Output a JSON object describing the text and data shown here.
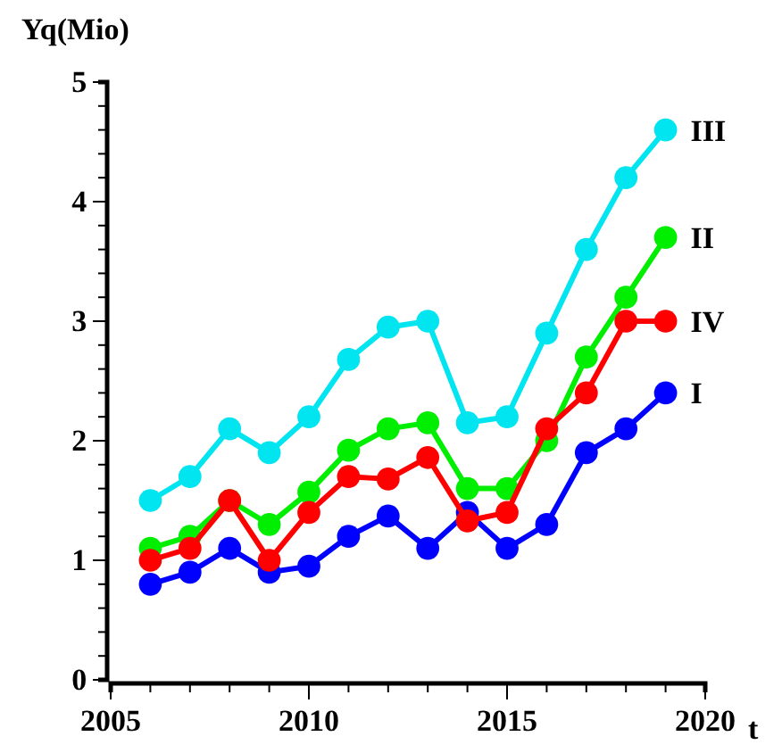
{
  "chart_data": {
    "type": "line",
    "xlabel": "t",
    "ylabel": "Yq(Mio)",
    "x": [
      2006,
      2007,
      2008,
      2009,
      2010,
      2011,
      2012,
      2013,
      2014,
      2015,
      2016,
      2017,
      2018,
      2019
    ],
    "xlim": [
      2005,
      2020
    ],
    "xticks": [
      2005,
      {
        "value": 2006,
        "label": null
      },
      {
        "value": 2007,
        "label": null
      },
      {
        "value": 2008,
        "label": null
      },
      {
        "value": 2009,
        "label": null
      },
      2010,
      {
        "value": 2011,
        "label": null
      },
      {
        "value": 2012,
        "label": null
      },
      {
        "value": 2013,
        "label": null
      },
      {
        "value": 2014,
        "label": null
      },
      2015,
      {
        "value": 2016,
        "label": null
      },
      {
        "value": 2017,
        "label": null
      },
      {
        "value": 2018,
        "label": null
      },
      {
        "value": 2019,
        "label": null
      },
      2020
    ],
    "ylim": [
      0,
      5
    ],
    "yticks": [
      0,
      {
        "value": 0.2,
        "label": null
      },
      {
        "value": 0.4,
        "label": null
      },
      {
        "value": 0.6,
        "label": null
      },
      {
        "value": 0.8,
        "label": null
      },
      1,
      {
        "value": 1.2,
        "label": null
      },
      {
        "value": 1.4,
        "label": null
      },
      {
        "value": 1.6,
        "label": null
      },
      {
        "value": 1.8,
        "label": null
      },
      2,
      {
        "value": 2.2,
        "label": null
      },
      {
        "value": 2.4,
        "label": null
      },
      {
        "value": 2.6,
        "label": null
      },
      {
        "value": 2.8,
        "label": null
      },
      3,
      {
        "value": 3.2,
        "label": null
      },
      {
        "value": 3.4,
        "label": null
      },
      {
        "value": 3.6,
        "label": null
      },
      {
        "value": 3.8,
        "label": null
      },
      4,
      {
        "value": 4.2,
        "label": null
      },
      {
        "value": 4.4,
        "label": null
      },
      {
        "value": 4.6,
        "label": null
      },
      {
        "value": 4.8,
        "label": null
      },
      5
    ],
    "marker": "circle",
    "series": [
      {
        "name": "I",
        "color": "#0000ff",
        "values": [
          0.8,
          0.9,
          1.1,
          0.9,
          0.95,
          1.2,
          1.37,
          1.1,
          1.4,
          1.1,
          1.3,
          1.9,
          2.1,
          2.4
        ]
      },
      {
        "name": "II",
        "color": "#00ee00",
        "values": [
          1.1,
          1.2,
          1.5,
          1.3,
          1.57,
          1.92,
          2.1,
          2.15,
          1.6,
          1.6,
          2.0,
          2.7,
          3.2,
          3.7
        ]
      },
      {
        "name": "III",
        "color": "#00e5f0",
        "values": [
          1.5,
          1.7,
          2.1,
          1.9,
          2.2,
          2.68,
          2.95,
          3.0,
          2.15,
          2.2,
          2.9,
          3.6,
          4.2,
          4.6
        ]
      },
      {
        "name": "IV",
        "color": "#ff0000",
        "values": [
          1.0,
          1.1,
          1.5,
          1.0,
          1.4,
          1.7,
          1.68,
          1.86,
          1.33,
          1.4,
          2.1,
          2.4,
          3.0,
          3.0
        ]
      }
    ]
  }
}
